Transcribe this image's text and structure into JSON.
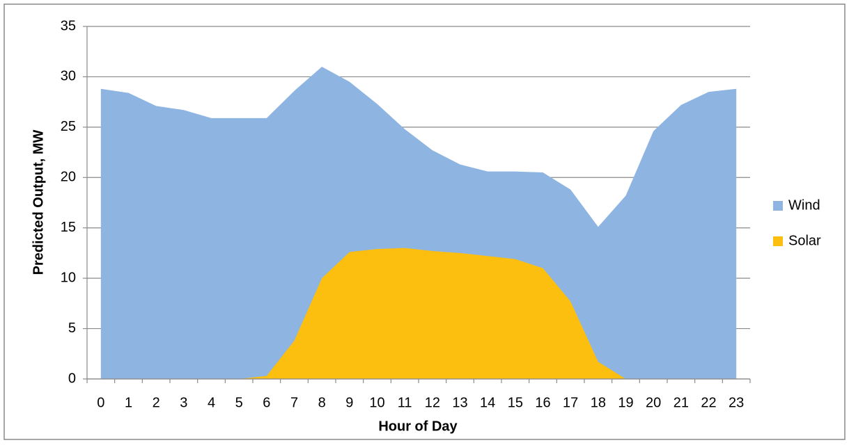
{
  "chart_data": {
    "type": "area",
    "x_label": "Hour of Day",
    "y_label": "Predicted Output,  MW",
    "categories": [
      "0",
      "1",
      "2",
      "3",
      "4",
      "5",
      "6",
      "7",
      "8",
      "9",
      "10",
      "11",
      "12",
      "13",
      "14",
      "15",
      "16",
      "17",
      "18",
      "19",
      "20",
      "21",
      "22",
      "23"
    ],
    "series": [
      {
        "name": "Wind",
        "color": "#8eb4e1",
        "values": [
          28.8,
          28.4,
          27.1,
          26.7,
          25.9,
          25.9,
          25.9,
          28.6,
          31.0,
          29.5,
          27.3,
          24.8,
          22.7,
          21.3,
          20.6,
          20.6,
          20.5,
          18.8,
          15.1,
          18.2,
          24.6,
          27.2,
          28.5,
          28.8
        ]
      },
      {
        "name": "Solar",
        "color": "#fcbf10",
        "values": [
          0,
          0,
          0,
          0,
          0,
          0,
          0.3,
          3.8,
          10.0,
          12.6,
          12.9,
          13.0,
          12.7,
          12.5,
          12.2,
          11.9,
          11.0,
          7.7,
          1.7,
          0,
          0,
          0,
          0,
          0
        ]
      }
    ],
    "ylim": [
      0,
      35
    ],
    "yticks": [
      0,
      5,
      10,
      15,
      20,
      25,
      30,
      35
    ],
    "grid": true,
    "legend": "right"
  }
}
